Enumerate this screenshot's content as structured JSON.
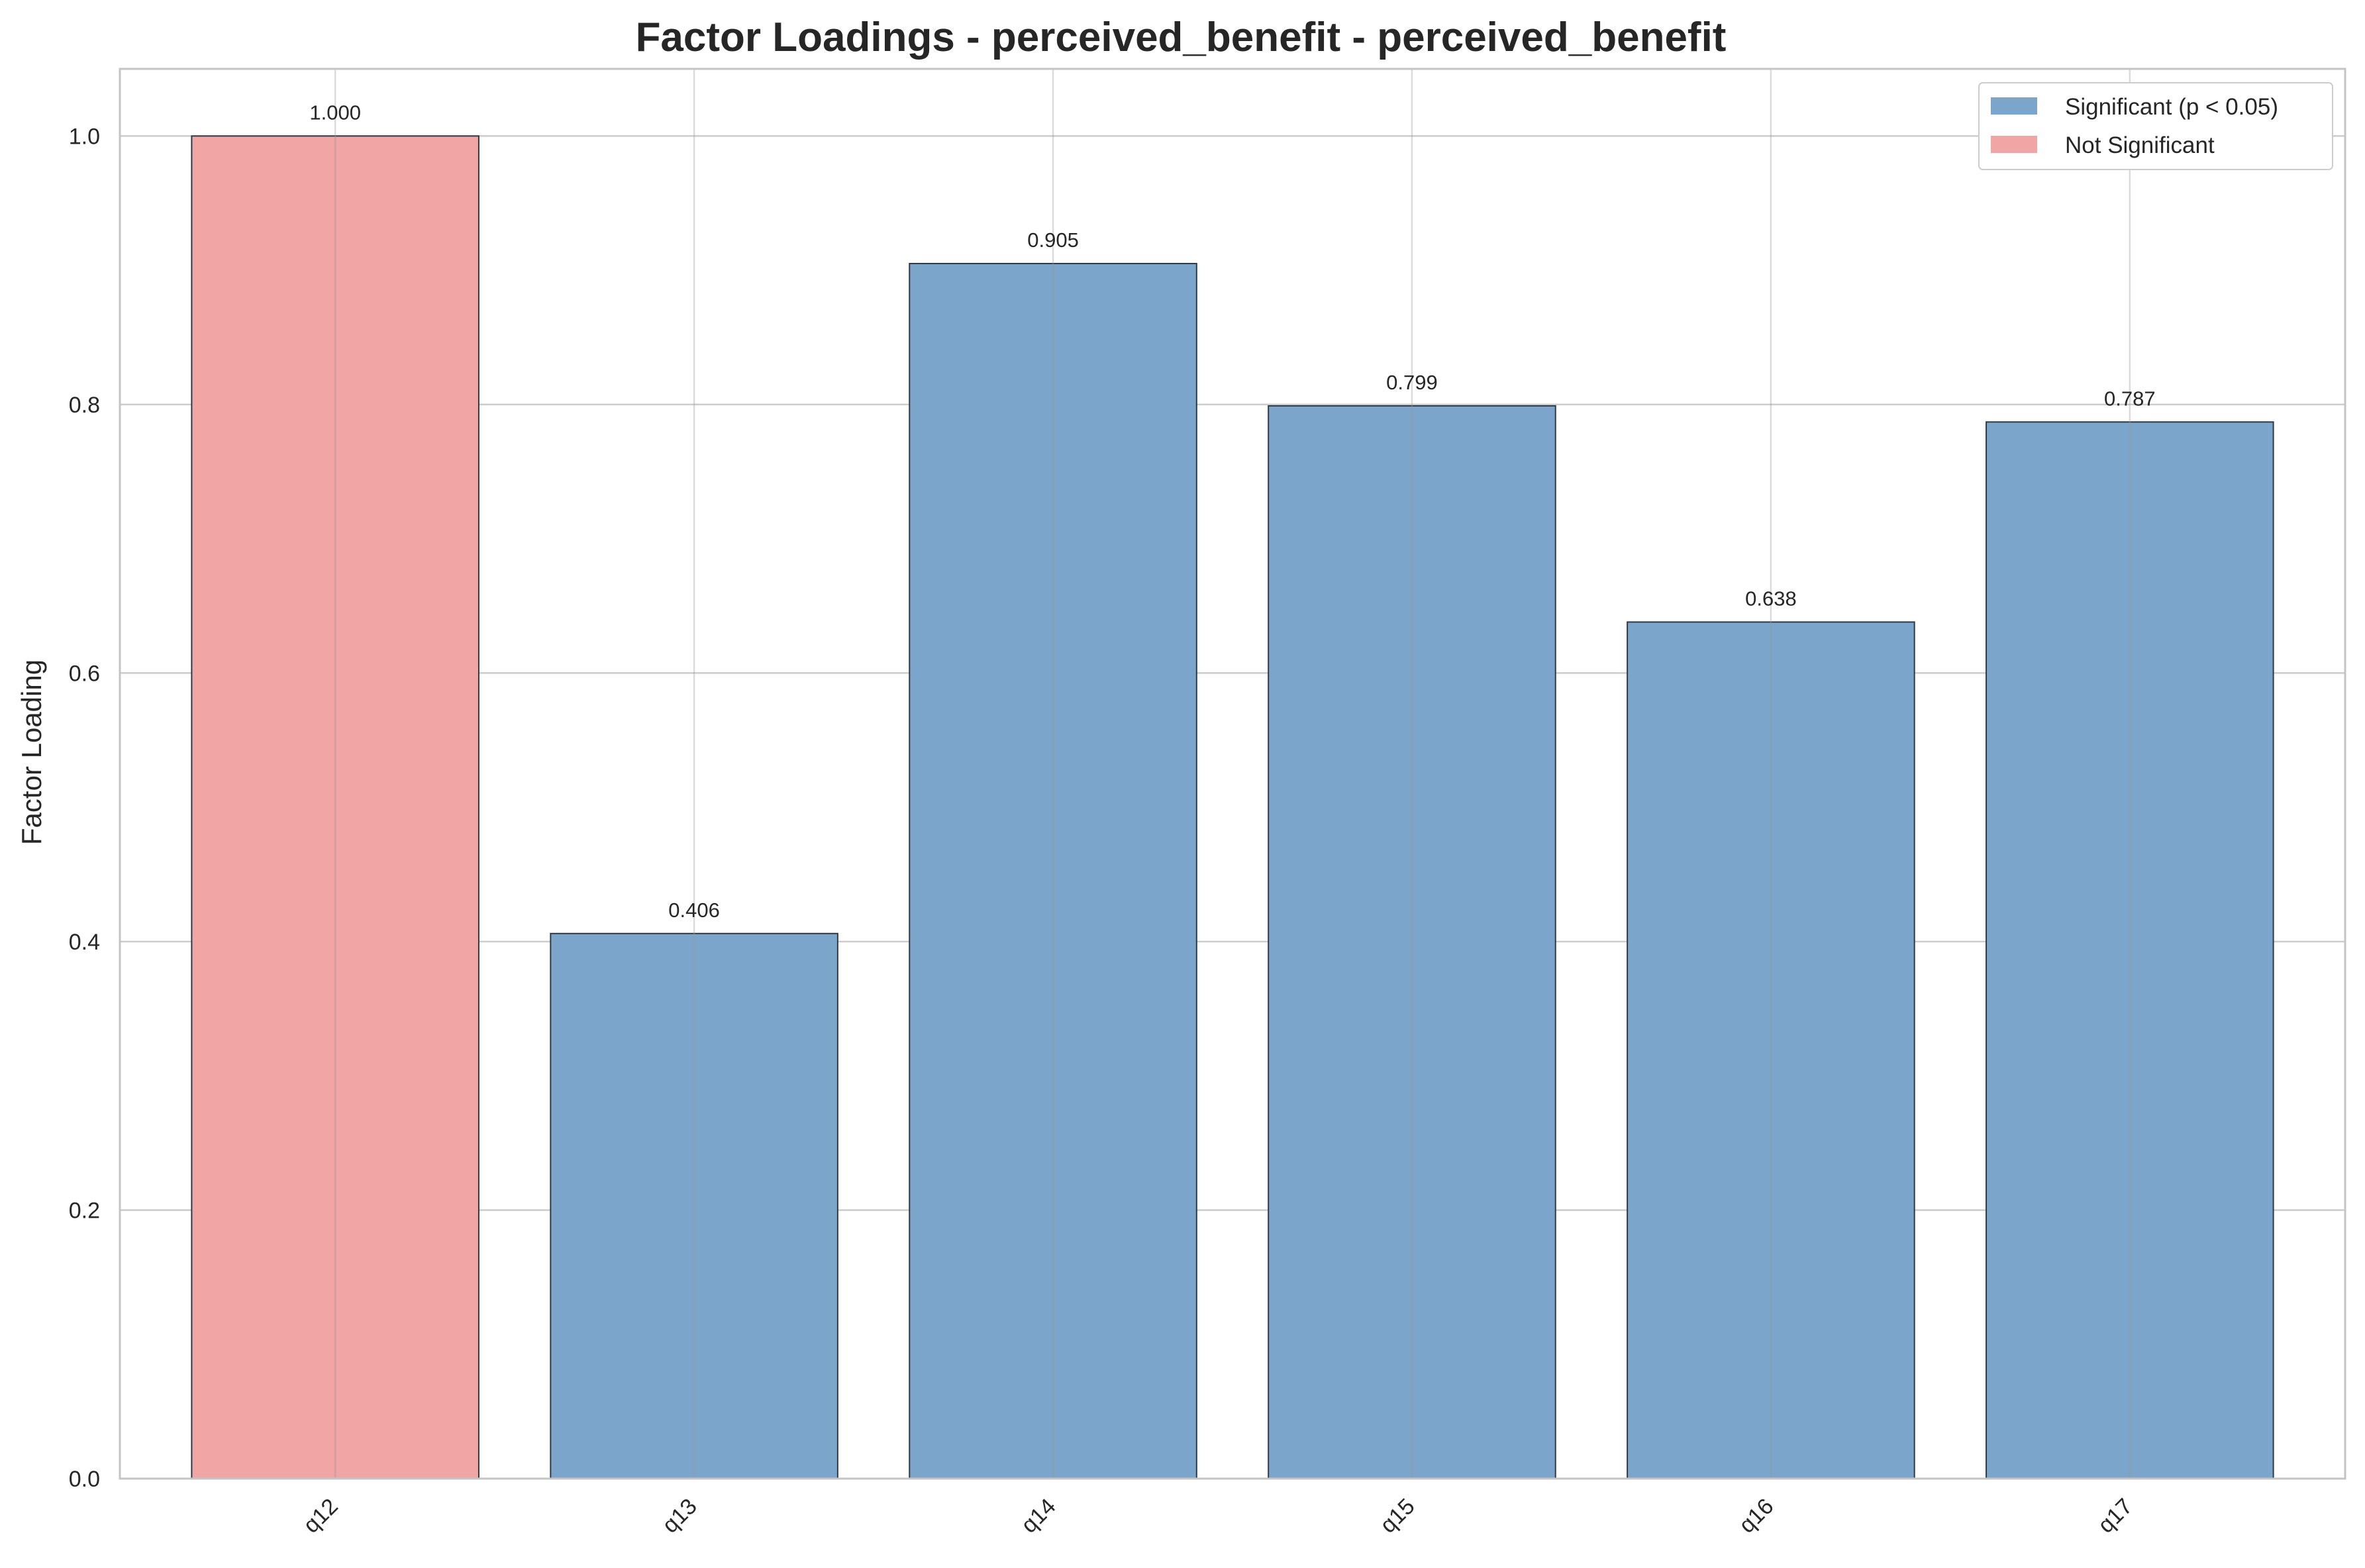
{
  "colors": {
    "significant": "#7BA5CA",
    "not_significant": "#F2A5A5",
    "bar_edge": "#2f3a45",
    "grid": "#cccccc",
    "axes": "#c4c4c4"
  },
  "chart_data": {
    "type": "bar",
    "title": "Factor Loadings - perceived_benefit - perceived_benefit",
    "xlabel": "",
    "ylabel": "Factor Loading",
    "ylim": [
      0,
      1.05
    ],
    "yticks": [
      0.0,
      0.2,
      0.4,
      0.6,
      0.8,
      1.0
    ],
    "ytick_labels": [
      "0.0",
      "0.2",
      "0.4",
      "0.6",
      "0.8",
      "1.0"
    ],
    "categories": [
      "q12",
      "q13",
      "q14",
      "q15",
      "q16",
      "q17"
    ],
    "values": [
      1.0,
      0.406,
      0.905,
      0.799,
      0.638,
      0.787
    ],
    "value_labels": [
      "1.000",
      "0.406",
      "0.905",
      "0.799",
      "0.638",
      "0.787"
    ],
    "significant": [
      false,
      true,
      true,
      true,
      true,
      true
    ],
    "grid": true,
    "legend": {
      "placement": "top-right",
      "entries": [
        {
          "label": "Significant (p < 0.05)",
          "color": "#7BA5CA"
        },
        {
          "label": "Not Significant",
          "color": "#F2A5A5"
        }
      ]
    }
  }
}
